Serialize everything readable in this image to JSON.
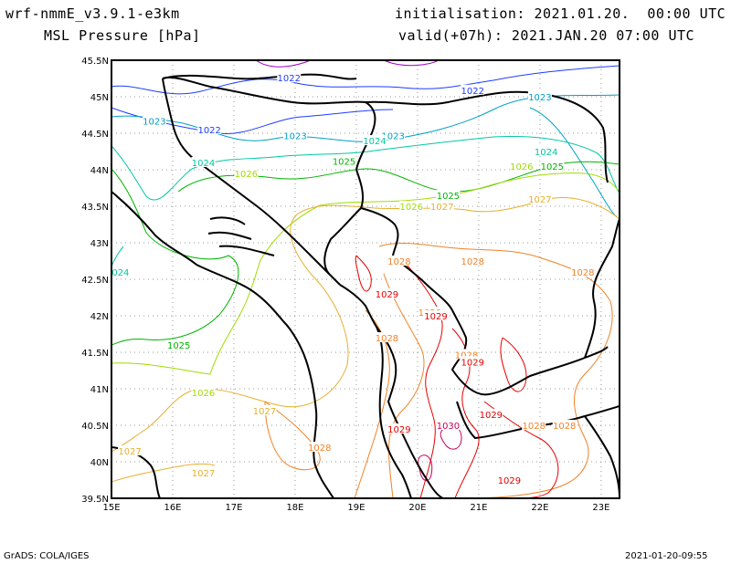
{
  "header": {
    "model": "wrf-nmmE_v3.9.1-e3km",
    "field": "MSL Pressure [hPa]",
    "initialisation": "initialisation: 2021.01.20.  00:00 UTC",
    "valid": "valid(+07h): 2021.JAN.20 07:00 UTC"
  },
  "footer": {
    "left": "GrADS: COLA/IGES",
    "right": "2021-01-20-09:55"
  },
  "map": {
    "lon_range": [
      15.0,
      23.3
    ],
    "lat_range": [
      39.5,
      45.5
    ],
    "lon_ticks": [
      "15E",
      "16E",
      "17E",
      "18E",
      "19E",
      "20E",
      "21E",
      "22E",
      "23E"
    ],
    "lat_ticks": [
      "39.5N",
      "40N",
      "40.5N",
      "41N",
      "41.5N",
      "42N",
      "42.5N",
      "43N",
      "43.5N",
      "44N",
      "44.5N",
      "45N",
      "45.5N"
    ],
    "grid": true,
    "colors": {
      "1021": "#a000c8",
      "1022": "#1e3cff",
      "1023": "#00a0c8",
      "1024": "#00c8a0",
      "1025": "#00b400",
      "1026": "#a0dc00",
      "1027": "#e6af2d",
      "1028": "#f08228",
      "1029": "#e60000",
      "1030": "#c8005a",
      "coast": "#000000"
    },
    "contour_labels": [
      {
        "text": "1022",
        "lon": 17.9,
        "lat": 45.26,
        "c": "1022"
      },
      {
        "text": "1022",
        "lon": 20.9,
        "lat": 45.09,
        "c": "1022"
      },
      {
        "text": "1022",
        "lon": 16.6,
        "lat": 44.55,
        "c": "1022"
      },
      {
        "text": "1023",
        "lon": 15.7,
        "lat": 44.67,
        "c": "1023"
      },
      {
        "text": "1023",
        "lon": 18.0,
        "lat": 44.47,
        "c": "1023"
      },
      {
        "text": "1023",
        "lon": 19.6,
        "lat": 44.47,
        "c": "1023"
      },
      {
        "text": "1023",
        "lon": 22.0,
        "lat": 45.0,
        "c": "1023"
      },
      {
        "text": "1024",
        "lon": 16.5,
        "lat": 44.1,
        "c": "1024"
      },
      {
        "text": "1024",
        "lon": 19.3,
        "lat": 44.4,
        "c": "1024"
      },
      {
        "text": "1024",
        "lon": 22.1,
        "lat": 44.25,
        "c": "1024"
      },
      {
        "text": "1024",
        "lon": 15.1,
        "lat": 42.6,
        "c": "1024"
      },
      {
        "text": "1025",
        "lon": 18.8,
        "lat": 44.12,
        "c": "1025"
      },
      {
        "text": "1025",
        "lon": 20.5,
        "lat": 43.65,
        "c": "1025"
      },
      {
        "text": "1025",
        "lon": 22.2,
        "lat": 44.05,
        "c": "1025"
      },
      {
        "text": "1025",
        "lon": 16.1,
        "lat": 41.6,
        "c": "1025"
      },
      {
        "text": "1026",
        "lon": 17.2,
        "lat": 43.95,
        "c": "1026"
      },
      {
        "text": "1026",
        "lon": 19.9,
        "lat": 43.5,
        "c": "1026"
      },
      {
        "text": "1026",
        "lon": 21.7,
        "lat": 44.05,
        "c": "1026"
      },
      {
        "text": "1026",
        "lon": 16.5,
        "lat": 40.95,
        "c": "1026"
      },
      {
        "text": "1027",
        "lon": 20.4,
        "lat": 43.5,
        "c": "1027"
      },
      {
        "text": "1027",
        "lon": 22.0,
        "lat": 43.6,
        "c": "1027"
      },
      {
        "text": "1027",
        "lon": 17.5,
        "lat": 40.7,
        "c": "1027"
      },
      {
        "text": "1027",
        "lon": 15.3,
        "lat": 40.15,
        "c": "1027"
      },
      {
        "text": "1027",
        "lon": 16.5,
        "lat": 39.85,
        "c": "1027"
      },
      {
        "text": "1028",
        "lon": 19.7,
        "lat": 42.75,
        "c": "1028"
      },
      {
        "text": "1028",
        "lon": 20.9,
        "lat": 42.75,
        "c": "1028"
      },
      {
        "text": "1028",
        "lon": 22.7,
        "lat": 42.6,
        "c": "1028"
      },
      {
        "text": "1028",
        "lon": 19.5,
        "lat": 41.7,
        "c": "1028"
      },
      {
        "text": "1028",
        "lon": 20.2,
        "lat": 42.05,
        "c": "1028"
      },
      {
        "text": "1028",
        "lon": 18.4,
        "lat": 40.2,
        "c": "1028"
      },
      {
        "text": "1028",
        "lon": 21.9,
        "lat": 40.5,
        "c": "1028"
      },
      {
        "text": "1028",
        "lon": 22.4,
        "lat": 40.5,
        "c": "1028"
      },
      {
        "text": "1028",
        "lon": 20.8,
        "lat": 41.47,
        "c": "1028"
      },
      {
        "text": "1029",
        "lon": 19.5,
        "lat": 42.3,
        "c": "1029"
      },
      {
        "text": "1029",
        "lon": 20.3,
        "lat": 42.0,
        "c": "1029"
      },
      {
        "text": "1029",
        "lon": 20.9,
        "lat": 41.37,
        "c": "1029"
      },
      {
        "text": "1029",
        "lon": 21.2,
        "lat": 40.65,
        "c": "1029"
      },
      {
        "text": "1029",
        "lon": 19.7,
        "lat": 40.45,
        "c": "1029"
      },
      {
        "text": "1029",
        "lon": 21.5,
        "lat": 39.75,
        "c": "1029"
      },
      {
        "text": "1030",
        "lon": 20.5,
        "lat": 40.5,
        "c": "1030"
      }
    ]
  }
}
